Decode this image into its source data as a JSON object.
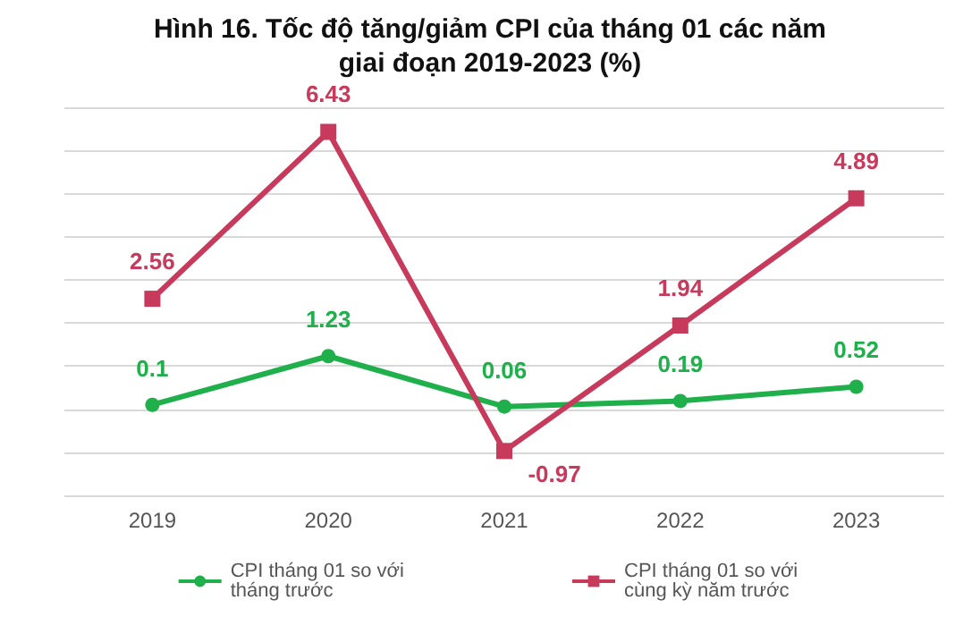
{
  "chart_data": {
    "type": "line",
    "title": "Hình 16. Tốc độ tăng/giảm CPI của tháng 01 các năm\ngiai đoạn 2019-2023 (%)",
    "categories": [
      "2019",
      "2020",
      "2021",
      "2022",
      "2023"
    ],
    "series": [
      {
        "name": "CPI tháng 01 so với tháng trước",
        "color": "#1fb04b",
        "marker": "circle",
        "values": [
          0.1,
          1.23,
          0.06,
          0.19,
          0.52
        ]
      },
      {
        "name": "CPI tháng 01 so với cùng kỳ năm trước",
        "color": "#c83a5c",
        "marker": "square",
        "values": [
          2.56,
          6.43,
          -0.97,
          1.94,
          4.89
        ]
      }
    ],
    "ylim": [
      -2,
      7
    ],
    "yticks": [
      {
        "value": -2,
        "label": null
      },
      {
        "value": -1,
        "label": null
      },
      {
        "value": 0,
        "label": null
      },
      {
        "value": 1,
        "label": null
      },
      {
        "value": 2,
        "label": null
      },
      {
        "value": 3,
        "label": null
      },
      {
        "value": 4,
        "label": null
      },
      {
        "value": 5,
        "label": null
      },
      {
        "value": 6,
        "label": null
      },
      {
        "value": 7,
        "label": null
      }
    ],
    "tick_labels": "x",
    "grid": "y",
    "legend": "bottom",
    "data_labels": true
  }
}
